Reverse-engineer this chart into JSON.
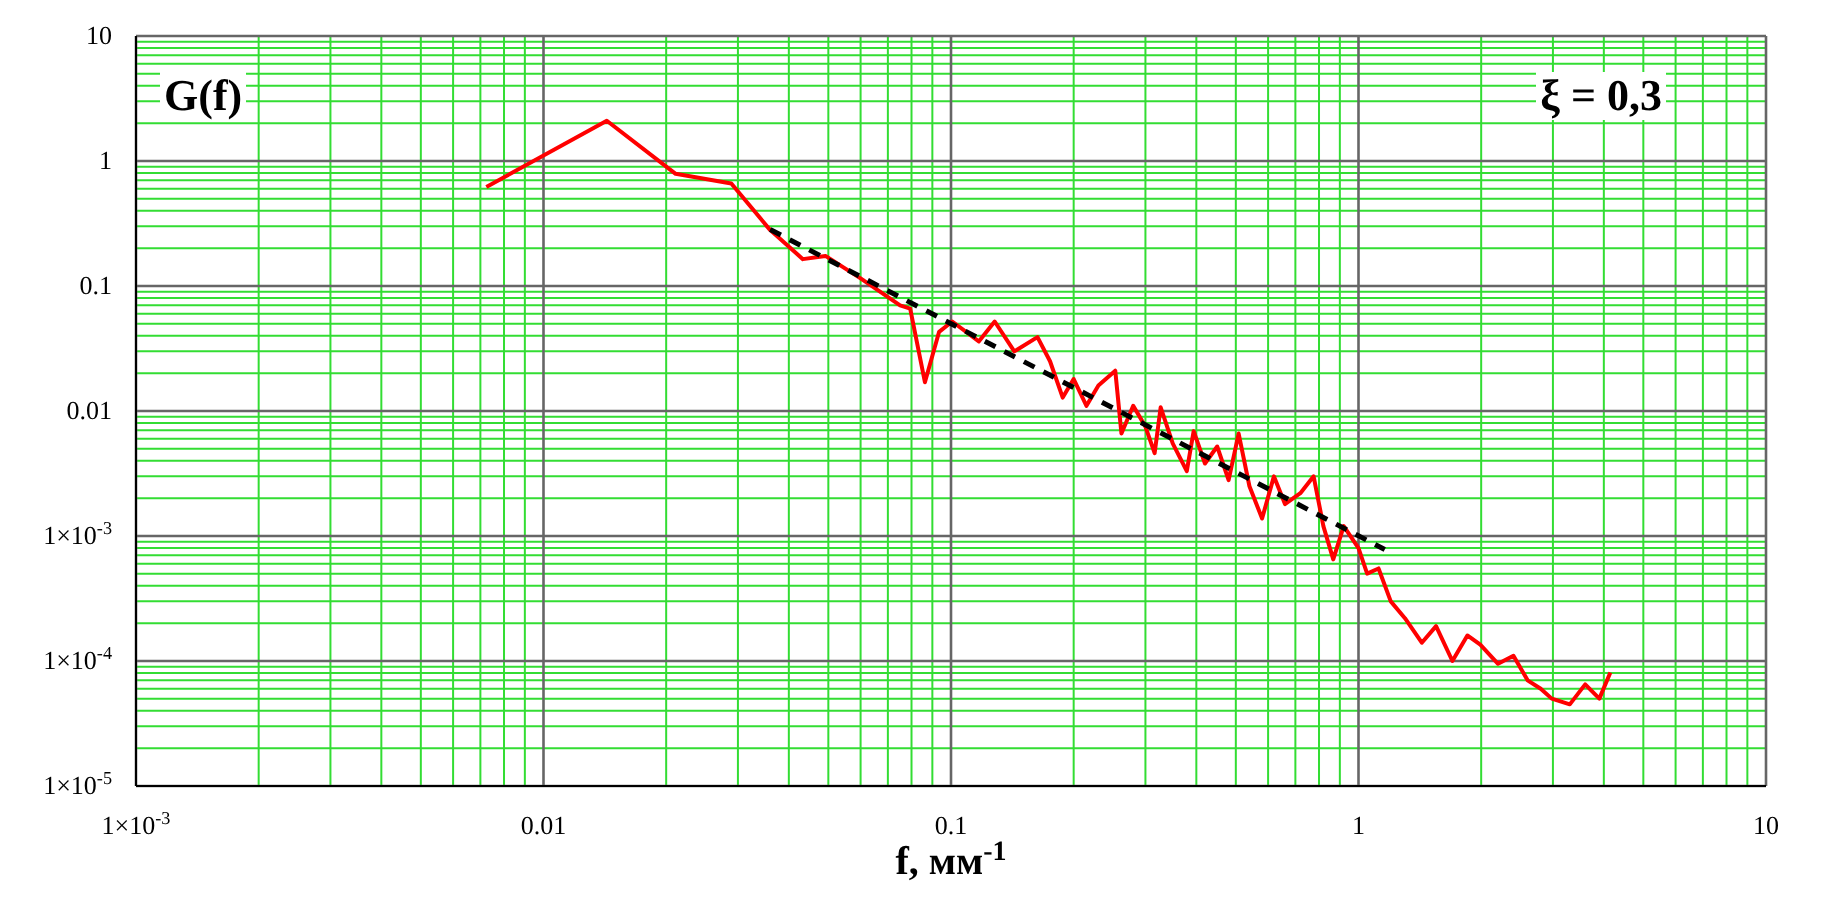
{
  "chart_data": {
    "type": "line",
    "xlabel": "f, мм$^{-1}$",
    "annotations": [
      "G(f)",
      "ξ = 0,3"
    ],
    "log": "xy",
    "grid": true,
    "legend": false,
    "marker": "none",
    "xlim": [
      0.001,
      10
    ],
    "xticks": [
      {
        "value": 0.001,
        "label": "1×10$^{-3}$"
      },
      {
        "value": 0.002,
        "label": null
      },
      {
        "value": 0.003,
        "label": null
      },
      {
        "value": 0.004,
        "label": null
      },
      {
        "value": 0.005,
        "label": null
      },
      {
        "value": 0.006,
        "label": null
      },
      {
        "value": 0.007,
        "label": null
      },
      {
        "value": 0.008,
        "label": null
      },
      {
        "value": 0.009,
        "label": null
      },
      0.01,
      {
        "value": 0.02,
        "label": null
      },
      {
        "value": 0.03,
        "label": null
      },
      {
        "value": 0.04,
        "label": null
      },
      {
        "value": 0.05,
        "label": null
      },
      {
        "value": 0.06,
        "label": null
      },
      {
        "value": 0.07,
        "label": null
      },
      {
        "value": 0.08,
        "label": null
      },
      {
        "value": 0.09,
        "label": null
      },
      0.1,
      {
        "value": 0.2,
        "label": null
      },
      {
        "value": 0.3,
        "label": null
      },
      {
        "value": 0.4,
        "label": null
      },
      {
        "value": 0.5,
        "label": null
      },
      {
        "value": 0.6,
        "label": null
      },
      {
        "value": 0.7,
        "label": null
      },
      {
        "value": 0.8,
        "label": null
      },
      {
        "value": 0.9,
        "label": null
      },
      1,
      {
        "value": 2,
        "label": null
      },
      {
        "value": 3,
        "label": null
      },
      {
        "value": 4,
        "label": null
      },
      {
        "value": 5,
        "label": null
      },
      {
        "value": 6,
        "label": null
      },
      {
        "value": 7,
        "label": null
      },
      {
        "value": 8,
        "label": null
      },
      {
        "value": 9,
        "label": null
      },
      10
    ],
    "ylim": [
      1e-05,
      10
    ],
    "yticks": [
      {
        "value": 1e-05,
        "label": "1×10$^{-5}$"
      },
      {
        "value": 2e-05,
        "label": null
      },
      {
        "value": 3e-05,
        "label": null
      },
      {
        "value": 4e-05,
        "label": null
      },
      {
        "value": 5e-05,
        "label": null
      },
      {
        "value": 6e-05,
        "label": null
      },
      {
        "value": 7e-05,
        "label": null
      },
      {
        "value": 8e-05,
        "label": null
      },
      {
        "value": 9e-05,
        "label": null
      },
      {
        "value": 0.0001,
        "label": "1×10$^{-4}$"
      },
      {
        "value": 0.0002,
        "label": null
      },
      {
        "value": 0.0003,
        "label": null
      },
      {
        "value": 0.0004,
        "label": null
      },
      {
        "value": 0.0005,
        "label": null
      },
      {
        "value": 0.0006,
        "label": null
      },
      {
        "value": 0.0007,
        "label": null
      },
      {
        "value": 0.0008,
        "label": null
      },
      {
        "value": 0.0009,
        "label": null
      },
      {
        "value": 0.001,
        "label": "1×10$^{-3}$"
      },
      {
        "value": 0.002,
        "label": null
      },
      {
        "value": 0.003,
        "label": null
      },
      {
        "value": 0.004,
        "label": null
      },
      {
        "value": 0.005,
        "label": null
      },
      {
        "value": 0.006,
        "label": null
      },
      {
        "value": 0.007,
        "label": null
      },
      {
        "value": 0.008,
        "label": null
      },
      {
        "value": 0.009,
        "label": null
      },
      0.01,
      {
        "value": 0.02,
        "label": null
      },
      {
        "value": 0.03,
        "label": null
      },
      {
        "value": 0.04,
        "label": null
      },
      {
        "value": 0.05,
        "label": null
      },
      {
        "value": 0.06,
        "label": null
      },
      {
        "value": 0.07,
        "label": null
      },
      {
        "value": 0.08,
        "label": null
      },
      {
        "value": 0.09,
        "label": null
      },
      0.1,
      {
        "value": 0.2,
        "label": null
      },
      {
        "value": 0.3,
        "label": null
      },
      {
        "value": 0.4,
        "label": null
      },
      {
        "value": 0.5,
        "label": null
      },
      {
        "value": 0.6,
        "label": null
      },
      {
        "value": 0.7,
        "label": null
      },
      {
        "value": 0.8,
        "label": null
      },
      {
        "value": 0.9,
        "label": null
      },
      1,
      {
        "value": 2,
        "label": null
      },
      {
        "value": 3,
        "label": null
      },
      {
        "value": 4,
        "label": null
      },
      {
        "value": 5,
        "label": null
      },
      {
        "value": 6,
        "label": null
      },
      {
        "value": 7,
        "label": null
      },
      {
        "value": 8,
        "label": null
      },
      {
        "value": 9,
        "label": null
      },
      10
    ],
    "series": [
      {
        "type": "line",
        "color": "#ff0000",
        "line_style": "solid",
        "x": [
          0.00724,
          0.0143,
          0.0211,
          0.0289,
          0.036,
          0.0433,
          0.0492,
          0.06,
          0.075,
          0.0794,
          0.0863,
          0.0935,
          0.1007,
          0.117,
          0.128,
          0.143,
          0.163,
          0.175,
          0.188,
          0.2,
          0.215,
          0.23,
          0.253,
          0.262,
          0.28,
          0.3,
          0.316,
          0.327,
          0.35,
          0.379,
          0.394,
          0.42,
          0.45,
          0.48,
          0.508,
          0.54,
          0.58,
          0.62,
          0.66,
          0.72,
          0.776,
          0.82,
          0.867,
          0.92,
          1.0,
          1.05,
          1.12,
          1.2,
          1.3,
          1.43,
          1.55,
          1.7,
          1.85,
          1.99,
          2.2,
          2.4,
          2.6,
          2.8,
          2.98,
          3.3,
          3.6,
          3.9,
          4.15
        ],
        "values": [
          0.62,
          2.1,
          0.79,
          0.66,
          0.28,
          0.164,
          0.174,
          0.115,
          0.07,
          0.066,
          0.017,
          0.043,
          0.052,
          0.036,
          0.052,
          0.03,
          0.039,
          0.025,
          0.0128,
          0.018,
          0.011,
          0.016,
          0.021,
          0.0066,
          0.011,
          0.0075,
          0.0046,
          0.0107,
          0.0055,
          0.0033,
          0.0069,
          0.0038,
          0.0052,
          0.0028,
          0.0066,
          0.0025,
          0.00138,
          0.003,
          0.0018,
          0.0022,
          0.003,
          0.0012,
          0.00065,
          0.0012,
          0.0008,
          0.0005,
          0.00055,
          0.0003,
          0.00022,
          0.00014,
          0.00019,
          0.0001,
          0.00016,
          0.000135,
          9.5e-05,
          0.00011,
          7e-05,
          6e-05,
          5e-05,
          4.5e-05,
          6.5e-05,
          5e-05,
          8.1e-05
        ]
      },
      {
        "type": "line",
        "color": "#000000",
        "line_style": "dashed",
        "x": [
          0.036,
          1.16
        ],
        "values": [
          0.283,
          0.00078
        ]
      }
    ]
  }
}
